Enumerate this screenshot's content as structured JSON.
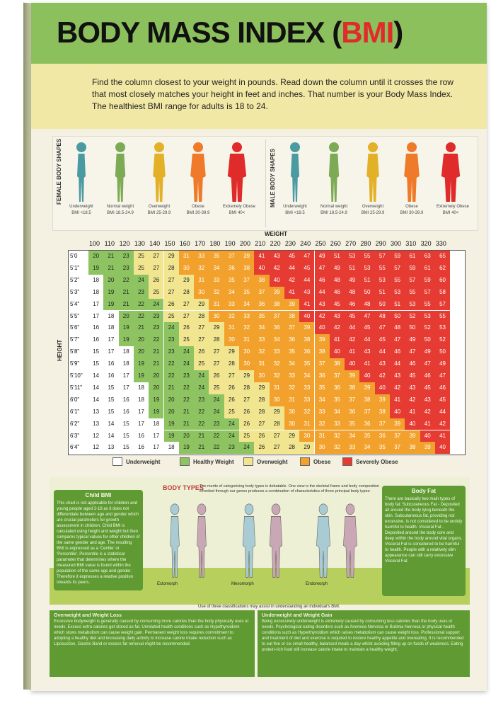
{
  "title": {
    "main": "BODY MASS INDEX (",
    "accent": "BMI",
    "close": ")"
  },
  "instructions": "Find the column closest to your weight in pounds. Read down the column until it crosses the row that most closely matches your height in feet and inches. That number is your Body Mass Index. The healthiest BMI range for adults is 18 to 24.",
  "female_shapes": {
    "label": "FEMALE BODY SHAPES",
    "items": [
      {
        "name": "Underweight",
        "range": "BMI <18.5",
        "color": "#4a9aa1"
      },
      {
        "name": "Normal weight",
        "range": "BMI 18.5-24.9",
        "color": "#7dab55"
      },
      {
        "name": "Overweight",
        "range": "BMI 25-29.9",
        "color": "#e3b128"
      },
      {
        "name": "Obese",
        "range": "BMI 30-39.9",
        "color": "#ef7a2a"
      },
      {
        "name": "Extremely Obese",
        "range": "BMI 40<",
        "color": "#e02b2b"
      }
    ]
  },
  "male_shapes": {
    "label": "MALE BODY SHAPES",
    "items": [
      {
        "name": "Underweight",
        "range": "BMI <18.5",
        "color": "#4a9aa1"
      },
      {
        "name": "Normal weight",
        "range": "BMI 18.5-24.9",
        "color": "#7dab55"
      },
      {
        "name": "Overweight",
        "range": "BMI 25-29.9",
        "color": "#e3b128"
      },
      {
        "name": "Obese",
        "range": "BMI 30-39.9",
        "color": "#ef7a2a"
      },
      {
        "name": "Extremely Obese",
        "range": "BMI 40<",
        "color": "#e02b2b"
      }
    ]
  },
  "table": {
    "weight_label": "WEIGHT",
    "height_label": "HEIGHT",
    "weights": [
      "100",
      "110",
      "120",
      "130",
      "140",
      "150",
      "160",
      "170",
      "180",
      "190",
      "200",
      "210",
      "220",
      "230",
      "240",
      "250",
      "260",
      "270",
      "280",
      "290",
      "300",
      "310",
      "320",
      "330"
    ],
    "heights": [
      "5'0",
      "5'1\"",
      "5'2\"",
      "5'3\"",
      "5'4\"",
      "5'5\"",
      "5'6\"",
      "5'7\"",
      "5'8\"",
      "5'9\"",
      "5'10\"",
      "5'11\"",
      "6'0\"",
      "6'1\"",
      "6'2\"",
      "6'3\"",
      "6'4\""
    ],
    "rows": [
      [
        "20",
        "21",
        "23",
        "25",
        "27",
        "29",
        "31",
        "33",
        "35",
        "37",
        "39",
        "41",
        "43",
        "45",
        "47",
        "49",
        "51",
        "53",
        "55",
        "57",
        "59",
        "61",
        "63",
        "65"
      ],
      [
        "19",
        "21",
        "23",
        "25",
        "27",
        "28",
        "30",
        "32",
        "34",
        "36",
        "38",
        "40",
        "42",
        "44",
        "45",
        "47",
        "49",
        "51",
        "53",
        "55",
        "57",
        "59",
        "61",
        "62"
      ],
      [
        "18",
        "20",
        "22",
        "24",
        "26",
        "27",
        "29",
        "31",
        "33",
        "35",
        "37",
        "38",
        "40",
        "42",
        "44",
        "46",
        "48",
        "49",
        "51",
        "53",
        "55",
        "57",
        "59",
        "60"
      ],
      [
        "18",
        "19",
        "21",
        "23",
        "25",
        "27",
        "28",
        "30",
        "32",
        "34",
        "35",
        "37",
        "39",
        "41",
        "43",
        "44",
        "46",
        "48",
        "50",
        "51",
        "53",
        "55",
        "57",
        "58"
      ],
      [
        "17",
        "19",
        "21",
        "22",
        "24",
        "26",
        "27",
        "29",
        "31",
        "33",
        "34",
        "36",
        "38",
        "39",
        "41",
        "43",
        "45",
        "46",
        "48",
        "50",
        "51",
        "53",
        "55",
        "57"
      ],
      [
        "17",
        "18",
        "20",
        "22",
        "23",
        "25",
        "27",
        "28",
        "30",
        "32",
        "33",
        "35",
        "37",
        "38",
        "40",
        "42",
        "43",
        "45",
        "47",
        "48",
        "50",
        "52",
        "53",
        "55"
      ],
      [
        "16",
        "18",
        "19",
        "21",
        "23",
        "24",
        "26",
        "27",
        "29",
        "31",
        "32",
        "34",
        "36",
        "37",
        "39",
        "40",
        "42",
        "44",
        "45",
        "47",
        "48",
        "50",
        "52",
        "53"
      ],
      [
        "16",
        "17",
        "19",
        "20",
        "22",
        "23",
        "25",
        "27",
        "28",
        "30",
        "31",
        "33",
        "34",
        "36",
        "38",
        "39",
        "41",
        "42",
        "44",
        "45",
        "47",
        "49",
        "50",
        "52"
      ],
      [
        "15",
        "17",
        "18",
        "20",
        "21",
        "23",
        "24",
        "26",
        "27",
        "29",
        "30",
        "32",
        "33",
        "35",
        "36",
        "38",
        "40",
        "41",
        "43",
        "44",
        "46",
        "47",
        "49",
        "50"
      ],
      [
        "15",
        "16",
        "18",
        "19",
        "21",
        "22",
        "24",
        "25",
        "27",
        "28",
        "30",
        "31",
        "32",
        "34",
        "35",
        "37",
        "38",
        "40",
        "41",
        "43",
        "44",
        "46",
        "47",
        "49"
      ],
      [
        "14",
        "16",
        "17",
        "19",
        "20",
        "22",
        "23",
        "24",
        "26",
        "27",
        "29",
        "30",
        "32",
        "33",
        "34",
        "36",
        "37",
        "39",
        "40",
        "42",
        "43",
        "45",
        "46",
        "47"
      ],
      [
        "14",
        "15",
        "17",
        "18",
        "20",
        "21",
        "22",
        "24",
        "25",
        "26",
        "28",
        "29",
        "31",
        "32",
        "33",
        "35",
        "36",
        "38",
        "39",
        "40",
        "42",
        "43",
        "45",
        "46"
      ],
      [
        "14",
        "15",
        "16",
        "18",
        "19",
        "20",
        "22",
        "23",
        "24",
        "26",
        "27",
        "28",
        "30",
        "31",
        "33",
        "34",
        "35",
        "37",
        "38",
        "39",
        "41",
        "42",
        "43",
        "45"
      ],
      [
        "13",
        "15",
        "16",
        "17",
        "19",
        "20",
        "21",
        "22",
        "24",
        "25",
        "26",
        "28",
        "29",
        "30",
        "32",
        "33",
        "34",
        "36",
        "37",
        "38",
        "40",
        "41",
        "42",
        "44"
      ],
      [
        "13",
        "14",
        "15",
        "17",
        "18",
        "19",
        "21",
        "22",
        "23",
        "24",
        "26",
        "27",
        "28",
        "30",
        "31",
        "32",
        "33",
        "35",
        "36",
        "37",
        "39",
        "40",
        "41",
        "42"
      ],
      [
        "12",
        "14",
        "15",
        "16",
        "17",
        "19",
        "20",
        "21",
        "22",
        "24",
        "25",
        "26",
        "27",
        "29",
        "30",
        "31",
        "32",
        "34",
        "35",
        "36",
        "37",
        "39",
        "40",
        "41"
      ],
      [
        "12",
        "13",
        "15",
        "16",
        "17",
        "18",
        "19",
        "21",
        "22",
        "23",
        "24",
        "26",
        "27",
        "28",
        "29",
        "30",
        "32",
        "33",
        "34",
        "35",
        "37",
        "38",
        "39",
        "40"
      ]
    ]
  },
  "legend": [
    {
      "label": "Underweight",
      "color": "#ffffff"
    },
    {
      "label": "Healthy Weight",
      "color": "#8dc461"
    },
    {
      "label": "Overweight",
      "color": "#f1e68f"
    },
    {
      "label": "Obese",
      "color": "#f2a22c"
    },
    {
      "label": "Severely Obese",
      "color": "#e63b32"
    }
  ],
  "child_bmi": {
    "title": "Child BMI",
    "text": "This chart is not applicable for children and young people aged 2-18 as it does not differentiate between age and gender which are crucial parameters for growth assessment in children. Child BMI is calculated using height and weight but then compares typical values for other children of the same gender and age. The resulting BMI is expressed as a 'Centile' or 'Percentile'. Percentile is a statistical parameter that determines where the measured BMI value is found within the population of the same age and gender. Therefore it expresses a relative position towards its peers."
  },
  "body_types": {
    "title": "BODY TYPES",
    "intro": "The merits of categorising body types is debatable. One view is the skeletal frame and body composition inherited through our genes produces a combination of characteristics of three principal body types:",
    "types": [
      {
        "name": "Ectomorph"
      },
      {
        "name": "Mesomorph"
      },
      {
        "name": "Endomorph"
      }
    ],
    "note": "Use of three classifications may assist in understanding an individual's BMI."
  },
  "body_fat": {
    "title": "Body Fat",
    "text": "There are basically two main types of body fat: Subcutaneous Fat - Deposited all around the body lying beneath the skin. Subcutaneous fat, providing not excessive, is not considered to be unduly harmful to health. Visceral Fat - Deposited around the body core and deep within the body around vital organs. Visceral Fat is considered to be harmful to health. People with a relatively slim appearance can still carry excessive Visceral Fat."
  },
  "overweight_loss": {
    "title": "Overweight and Weight Loss",
    "text": "Excessive bodyweight is generally caused by consuming more calories than the body physically uses or needs. Excess extra calories get stored as fat. Unrelated health conditions such as Hypothyroidism which slows metabolism can cause weight gain. Permanent weight loss requires commitment to adopting a healthy diet and increasing daily activity to increase calorie intake reduction such as Liposuction, Gastric Band or excess fat removal might be recommended."
  },
  "underweight_gain": {
    "title": "Underweight and Weight Gain",
    "text": "Being excessively underweight is extremely caused by consuming less calories than the body uses or needs. Psychological eating disorders such as Anorexia Nervosa or Bulimia Nervosa or physical health conditions such as Hyperthyroidism which raises metabolism can cause weight loss. Professional support and treatment of diet and exercise is required to restore healthy appetite and overeating. It is recommended to eat five or six small healthy, balanced meals a day whilst avoiding filling up on foods of weakness. Eating protein-rich food will increase calorie intake to maintain a healthy weight."
  }
}
